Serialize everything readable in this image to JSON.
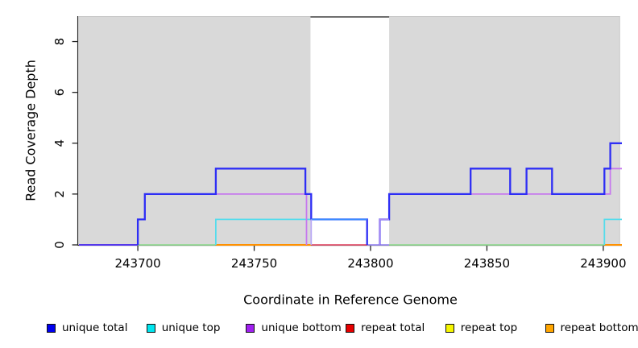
{
  "figure": {
    "xlabel": "Coordinate in Reference Genome",
    "ylabel": "Read Coverage Depth"
  },
  "legend": {
    "items": [
      {
        "label": "unique total",
        "color": "#0000ee"
      },
      {
        "label": "unique top",
        "color": "#00e5ee"
      },
      {
        "label": "unique bottom",
        "color": "#a020f0"
      },
      {
        "label": "repeat total",
        "color": "#e60000"
      },
      {
        "label": "repeat top",
        "color": "#f5f500"
      },
      {
        "label": "repeat bottom",
        "color": "#ffa500"
      }
    ]
  },
  "chart_data": {
    "type": "line",
    "subtype": "step-coverage",
    "title": "",
    "xlabel": "Coordinate in Reference Genome",
    "ylabel": "Read Coverage Depth",
    "xlim": [
      243674.7,
      243908
    ],
    "ylim": [
      0,
      9
    ],
    "x_ticks": [
      243700,
      243750,
      243800,
      243850,
      243900
    ],
    "y_ticks": [
      0,
      2,
      4,
      6,
      8
    ],
    "grid": false,
    "legend_position": "bottom",
    "background_shading": [
      {
        "start": 243674.7,
        "end": 243774.2,
        "fill": "#d9d9d9"
      },
      {
        "start": 243808.0,
        "end": 243907.2,
        "fill": "#d9d9d9"
      }
    ],
    "unshaded_gap": {
      "start": 243774.2,
      "end": 243808.0,
      "top_border_color": "#6e6e6e"
    },
    "series": [
      {
        "name": "unique total",
        "color": "#0000ee",
        "step_points": [
          [
            243674,
            0
          ],
          [
            243700,
            1
          ],
          [
            243703,
            2
          ],
          [
            243733.5,
            3
          ],
          [
            243772,
            2
          ],
          [
            243774.5,
            1
          ],
          [
            243798.5,
            0
          ],
          [
            243804,
            1
          ],
          [
            243808,
            2
          ],
          [
            243843,
            3
          ],
          [
            243860,
            2
          ],
          [
            243867,
            3
          ],
          [
            243878,
            2
          ],
          [
            243900.5,
            3
          ],
          [
            243903,
            4
          ],
          [
            243908,
            4
          ]
        ]
      },
      {
        "name": "unique top",
        "color": "#00e5ee",
        "step_points": [
          [
            243674,
            0
          ],
          [
            243733.5,
            1
          ],
          [
            243774.5,
            0
          ],
          [
            243900.5,
            1
          ],
          [
            243908,
            1
          ]
        ]
      },
      {
        "name": "unique bottom",
        "color": "#a020f0",
        "step_points": [
          [
            243674,
            0
          ],
          [
            243700,
            1
          ],
          [
            243703,
            2
          ],
          [
            243772.5,
            0
          ],
          [
            243804,
            1
          ],
          [
            243808,
            2
          ],
          [
            243903,
            3
          ],
          [
            243908,
            3
          ]
        ]
      },
      {
        "name": "repeat total",
        "color": "#e60000",
        "step_points": [
          [
            243674,
            0
          ],
          [
            243908,
            0
          ]
        ]
      },
      {
        "name": "repeat top",
        "color": "#f5f500",
        "step_points": [
          [
            243674,
            0
          ],
          [
            243908,
            0
          ]
        ]
      },
      {
        "name": "repeat bottom",
        "color": "#ffa500",
        "step_points": [
          [
            243674,
            0
          ],
          [
            243908,
            0
          ]
        ]
      }
    ],
    "render_segments": [
      {
        "name": "baseline-indigo",
        "color": "#5438ea",
        "width": 2.0,
        "points": [
          [
            243674.7,
            0
          ],
          [
            243700,
            0
          ]
        ]
      },
      {
        "name": "baseline-green-1",
        "color": "#93d793",
        "width": 1.8,
        "points": [
          [
            243700,
            0
          ],
          [
            243733.5,
            0
          ]
        ]
      },
      {
        "name": "baseline-orange-1",
        "color": "#ff9100",
        "width": 2.0,
        "points": [
          [
            243733.5,
            0
          ],
          [
            243774.5,
            0
          ]
        ]
      },
      {
        "name": "baseline-pink",
        "color": "#e25570",
        "width": 1.8,
        "points": [
          [
            243774.5,
            0
          ],
          [
            243798.5,
            0
          ]
        ]
      },
      {
        "name": "baseline-lavender",
        "color": "#9b8cf0",
        "width": 1.8,
        "points": [
          [
            243798.5,
            0
          ],
          [
            243808,
            0
          ]
        ]
      },
      {
        "name": "baseline-green-2",
        "color": "#93d793",
        "width": 1.8,
        "points": [
          [
            243808,
            0
          ],
          [
            243900.5,
            0
          ]
        ]
      },
      {
        "name": "baseline-orange-2",
        "color": "#ff9100",
        "width": 2.0,
        "points": [
          [
            243900.5,
            0
          ],
          [
            243908,
            0
          ]
        ]
      },
      {
        "name": "unique-top-1",
        "color": "#55dcec",
        "width": 1.8,
        "points": [
          [
            243733.5,
            0
          ],
          [
            243733.5,
            1
          ],
          [
            243774.5,
            1
          ]
        ]
      },
      {
        "name": "unique-top-2",
        "color": "#55dcec",
        "width": 1.8,
        "points": [
          [
            243900.5,
            0
          ],
          [
            243900.5,
            1
          ],
          [
            243908,
            1
          ]
        ]
      },
      {
        "name": "unique-bottom-1",
        "color": "#c678ee",
        "width": 1.8,
        "points": [
          [
            243700,
            0
          ],
          [
            243700,
            1
          ],
          [
            243703,
            1
          ],
          [
            243703,
            2
          ],
          [
            243772.5,
            2
          ],
          [
            243772.5,
            0
          ]
        ]
      },
      {
        "name": "unique-bottom-2",
        "color": "#c678ee",
        "width": 1.8,
        "points": [
          [
            243808,
            1
          ],
          [
            243808,
            2
          ],
          [
            243903,
            2
          ],
          [
            243903,
            3
          ],
          [
            243908,
            3
          ]
        ]
      },
      {
        "name": "unique-total-1",
        "color": "#2e2ef5",
        "width": 2.3,
        "points": [
          [
            243700,
            0
          ],
          [
            243700,
            1
          ],
          [
            243703,
            1
          ],
          [
            243703,
            2
          ],
          [
            243733.5,
            2
          ],
          [
            243733.5,
            3
          ],
          [
            243772,
            3
          ],
          [
            243772,
            2
          ],
          [
            243774.5,
            2
          ],
          [
            243774.5,
            1
          ],
          [
            243798.5,
            1
          ],
          [
            243798.5,
            0
          ]
        ]
      },
      {
        "name": "unique-total-2",
        "color": "#2e2ef5",
        "width": 2.3,
        "points": [
          [
            243804,
            0
          ],
          [
            243804,
            1
          ],
          [
            243808,
            1
          ],
          [
            243808,
            2
          ],
          [
            243843,
            2
          ],
          [
            243843,
            3
          ],
          [
            243860,
            3
          ],
          [
            243860,
            2
          ],
          [
            243867,
            2
          ],
          [
            243867,
            3
          ],
          [
            243878,
            3
          ],
          [
            243878,
            2
          ],
          [
            243900.5,
            2
          ],
          [
            243900.5,
            3
          ],
          [
            243903,
            3
          ],
          [
            243903,
            4
          ],
          [
            243908,
            4
          ]
        ]
      },
      {
        "name": "unique-bottom-gap",
        "color": "#a88cf2",
        "width": 1.8,
        "points": [
          [
            243804,
            0
          ],
          [
            243804,
            1
          ],
          [
            243808,
            1
          ]
        ]
      },
      {
        "name": "gap-total-light",
        "color": "#3d8cff",
        "width": 2.0,
        "points": [
          [
            243774.5,
            1
          ],
          [
            243798.5,
            1
          ]
        ]
      },
      {
        "name": "gap-drop-lavender",
        "color": "#b9a8f5",
        "width": 1.8,
        "points": [
          [
            243774.5,
            1
          ],
          [
            243774.5,
            0
          ]
        ]
      }
    ]
  }
}
